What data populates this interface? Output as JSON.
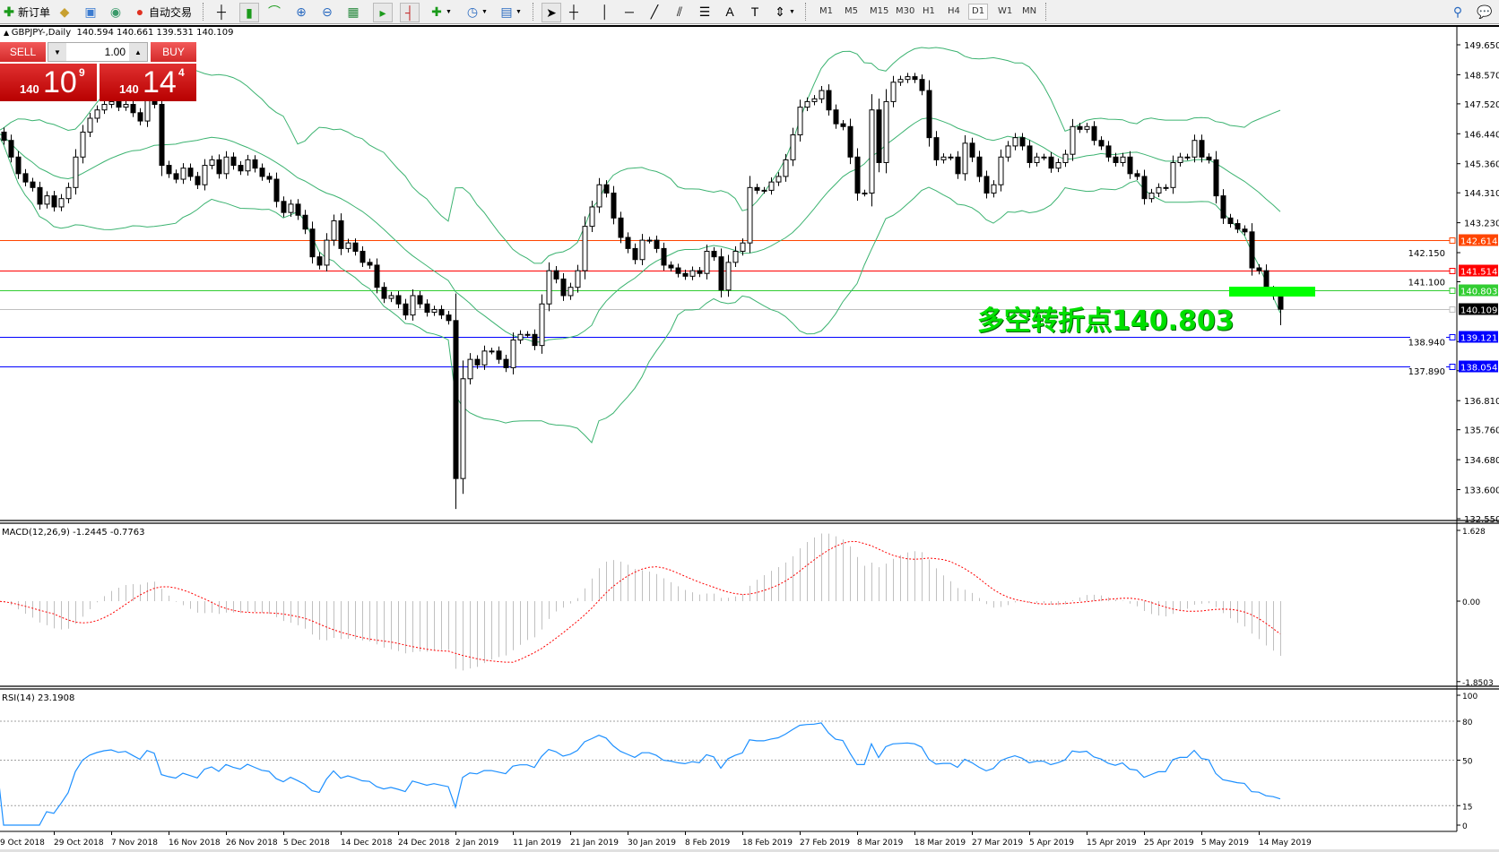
{
  "toolbar": {
    "new_order": "新订单",
    "auto_trading": "自动交易",
    "timeframes": [
      "M1",
      "M5",
      "M15",
      "M30",
      "H1",
      "H4",
      "D1",
      "W1",
      "MN"
    ],
    "active_timeframe": "D1"
  },
  "chart": {
    "symbol": "GBPJPY-,Daily",
    "ohlc": "140.594 140.661 139.531 140.109"
  },
  "trade_panel": {
    "sell_label": "SELL",
    "buy_label": "BUY",
    "lot": "1.00",
    "sell_price": {
      "prefix": "140",
      "main": "10",
      "sup": "9"
    },
    "buy_price": {
      "prefix": "140",
      "main": "14",
      "sup": "4"
    },
    "color": "#d42a2a"
  },
  "annotation": {
    "text": "多空转折点140.803",
    "color": "#00e000",
    "zone_color": "#00ff00"
  },
  "chart_data": {
    "type": "candlestick",
    "symbol": "GBPJPY-",
    "timeframe": "Daily",
    "price_axis": {
      "min": 132.55,
      "max": 149.65,
      "ticks": [
        "149.650",
        "148.570",
        "147.520",
        "146.440",
        "145.360",
        "144.310",
        "143.230",
        "142.150",
        "141.100",
        "138.940",
        "137.890",
        "136.810",
        "135.760",
        "134.680",
        "133.600",
        "132.550"
      ]
    },
    "date_labels": [
      "9 Oct 2018",
      "29 Oct 2018",
      "7 Nov 2018",
      "16 Nov 2018",
      "26 Nov 2018",
      "5 Dec 2018",
      "14 Dec 2018",
      "24 Dec 2018",
      "2 Jan 2019",
      "11 Jan 2019",
      "21 Jan 2019",
      "30 Jan 2019",
      "8 Feb 2019",
      "18 Feb 2019",
      "27 Feb 2019",
      "8 Mar 2019",
      "18 Mar 2019",
      "27 Mar 2019",
      "5 Apr 2019",
      "15 Apr 2019",
      "25 Apr 2019",
      "5 May 2019",
      "14 May 2019"
    ],
    "closes": [
      146.5,
      146.2,
      145.6,
      145.0,
      144.7,
      144.5,
      143.9,
      144.2,
      143.8,
      144.1,
      144.5,
      145.6,
      146.5,
      147.0,
      147.3,
      147.5,
      147.6,
      147.4,
      147.5,
      147.2,
      146.9,
      147.7,
      147.5,
      145.3,
      145.0,
      144.8,
      145.2,
      144.9,
      144.6,
      145.3,
      145.5,
      145.0,
      145.6,
      145.3,
      145.1,
      145.5,
      145.2,
      144.9,
      144.8,
      144.0,
      143.6,
      143.9,
      143.5,
      143.0,
      142.0,
      141.7,
      142.6,
      143.3,
      142.3,
      142.5,
      142.2,
      141.8,
      141.7,
      140.9,
      140.5,
      140.6,
      140.3,
      139.9,
      140.6,
      140.3,
      140.0,
      140.1,
      139.9,
      139.7,
      134.0,
      137.6,
      138.3,
      138.1,
      138.6,
      138.6,
      138.3,
      138.0,
      139.0,
      139.2,
      139.2,
      138.8,
      140.3,
      141.5,
      141.2,
      140.6,
      140.9,
      141.5,
      143.1,
      143.8,
      144.6,
      144.3,
      143.4,
      142.7,
      142.3,
      141.9,
      142.6,
      142.6,
      142.3,
      141.7,
      141.6,
      141.4,
      141.3,
      141.5,
      141.4,
      142.2,
      142.0,
      140.8,
      141.8,
      142.2,
      142.5,
      144.5,
      144.4,
      144.4,
      144.7,
      144.9,
      145.5,
      146.4,
      147.4,
      147.6,
      147.7,
      148.0,
      147.3,
      146.8,
      146.7,
      145.6,
      144.3,
      144.3,
      147.3,
      145.4,
      147.6,
      148.3,
      148.4,
      148.5,
      148.4,
      148.0,
      146.3,
      145.5,
      145.6,
      145.6,
      145.0,
      146.1,
      145.6,
      144.9,
      144.3,
      144.6,
      145.6,
      146.0,
      146.3,
      146.0,
      145.4,
      145.6,
      145.6,
      145.2,
      145.4,
      145.7,
      146.7,
      146.6,
      146.7,
      146.2,
      146.0,
      145.6,
      145.4,
      145.6,
      145.0,
      144.9,
      144.1,
      144.3,
      144.5,
      144.5,
      145.4,
      145.6,
      145.6,
      146.2,
      145.6,
      145.5,
      144.2,
      143.4,
      143.2,
      143.0,
      142.9,
      141.6,
      141.5,
      140.8,
      140.594,
      140.109
    ],
    "last_bar": {
      "open": 140.594,
      "high": 140.661,
      "low": 139.531,
      "close": 140.109
    },
    "crash_low": 132.9,
    "hlines": [
      {
        "price": 142.614,
        "label": "142.614",
        "color": "#ff4500"
      },
      {
        "price": 141.514,
        "label": "141.514",
        "color": "#ff0000"
      },
      {
        "price": 140.803,
        "label": "140.803",
        "color": "#32cd32"
      },
      {
        "price": 140.109,
        "label": "140.109",
        "color": "#c0c0c0",
        "label_bg": "#000000"
      },
      {
        "price": 139.121,
        "label": "139.121",
        "color": "#0000ff"
      },
      {
        "price": 138.054,
        "label": "138.054",
        "color": "#0000ff"
      }
    ],
    "bollinger": {
      "period": 20,
      "deviation": 2,
      "color": "#3cb371"
    },
    "macd": {
      "label": "MACD(12,26,9) -1.2445 -0.7763",
      "ticks": [
        "1.628",
        "0.00",
        "-1.8503"
      ],
      "range": [
        -1.8503,
        1.628
      ],
      "hist_color": "#c0c0c0",
      "signal_color": "#ff0000"
    },
    "rsi": {
      "label": "RSI(14) 23.1908",
      "ticks": [
        "100",
        "80",
        "50",
        "15",
        "0"
      ],
      "levels": [
        80,
        50,
        15
      ],
      "color": "#1e90ff"
    }
  }
}
